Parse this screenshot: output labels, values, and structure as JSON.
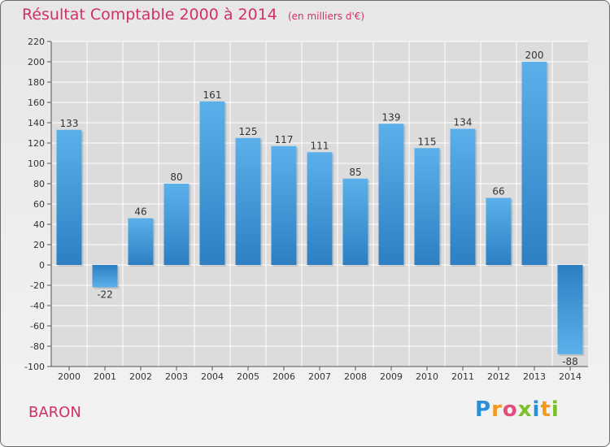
{
  "chart_data": {
    "type": "bar",
    "title": "Résultat Comptable 2000 à 2014",
    "subtitle": "(en milliers d'€)",
    "categories": [
      "2000",
      "2001",
      "2002",
      "2003",
      "2004",
      "2005",
      "2006",
      "2007",
      "2008",
      "2009",
      "2010",
      "2011",
      "2012",
      "2013",
      "2014"
    ],
    "values": [
      133,
      -22,
      46,
      80,
      161,
      125,
      117,
      111,
      85,
      139,
      115,
      134,
      66,
      200,
      -88
    ],
    "ylim": [
      -100,
      220
    ],
    "yticks": [
      -100,
      -80,
      -60,
      -40,
      -20,
      0,
      20,
      40,
      60,
      80,
      100,
      120,
      140,
      160,
      180,
      200,
      220
    ],
    "xlabel": "",
    "ylabel": "",
    "grid": true
  },
  "footer": {
    "commune": "BARON",
    "logo_letters": [
      "P",
      "r",
      "o",
      "x",
      "i",
      "t",
      "i"
    ],
    "logo_colors": [
      "#2a8fd8",
      "#f29a1f",
      "#e54d7a",
      "#7bbf2a",
      "#2a8fd8",
      "#f29a1f",
      "#7bbf2a"
    ]
  },
  "colors": {
    "bar_top": "#5cb0ea",
    "bar_bottom": "#2e7fc2",
    "grid": "#ffffff",
    "title": "#d0306a"
  }
}
